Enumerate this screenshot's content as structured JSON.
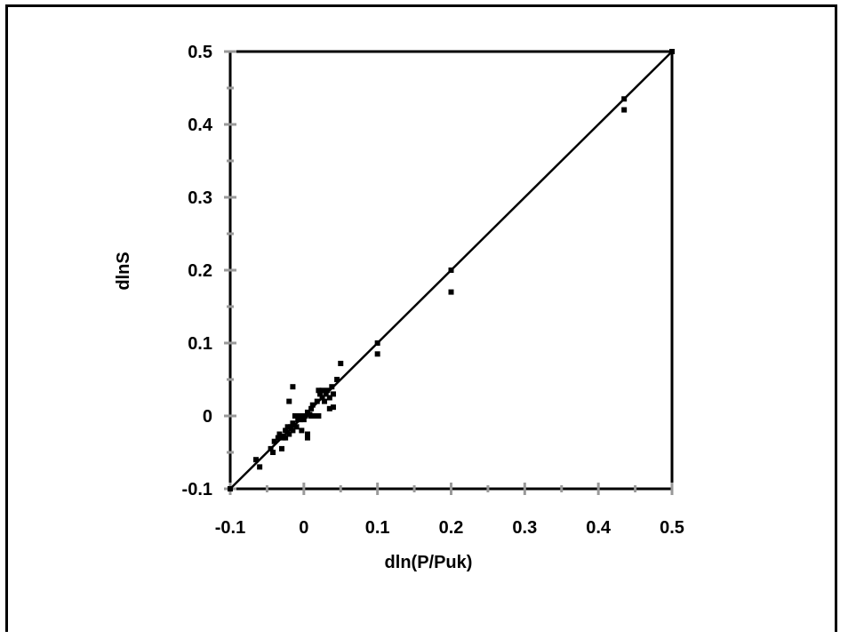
{
  "chart_data": {
    "type": "scatter",
    "title": "",
    "xlabel": "dln(P/Puk)",
    "ylabel": "dlnS",
    "xlim": [
      -0.1,
      0.5
    ],
    "ylim": [
      -0.1,
      0.5
    ],
    "xticks": [
      "-0.1",
      "0",
      "0.1",
      "0.2",
      "0.3",
      "0.4",
      "0.5"
    ],
    "yticks": [
      "-0.1",
      "0",
      "0.1",
      "0.2",
      "0.3",
      "0.4",
      "0.5"
    ],
    "x_tick_values": [
      -0.1,
      0,
      0.1,
      0.2,
      0.3,
      0.4,
      0.5
    ],
    "y_tick_values": [
      -0.1,
      0,
      0.1,
      0.2,
      0.3,
      0.4,
      0.5
    ],
    "grid": false,
    "reference_line": {
      "x": [
        -0.1,
        0.5
      ],
      "y": [
        -0.1,
        0.5
      ]
    },
    "points": [
      [
        -0.1,
        -0.1
      ],
      [
        -0.065,
        -0.06
      ],
      [
        -0.06,
        -0.07
      ],
      [
        -0.045,
        -0.045
      ],
      [
        -0.042,
        -0.05
      ],
      [
        -0.04,
        -0.035
      ],
      [
        -0.035,
        -0.03
      ],
      [
        -0.033,
        -0.025
      ],
      [
        -0.03,
        -0.045
      ],
      [
        -0.03,
        -0.028
      ],
      [
        -0.028,
        -0.03
      ],
      [
        -0.025,
        -0.02
      ],
      [
        -0.025,
        -0.03
      ],
      [
        -0.022,
        -0.015
      ],
      [
        -0.02,
        0.02
      ],
      [
        -0.02,
        -0.025
      ],
      [
        -0.018,
        -0.015
      ],
      [
        -0.015,
        0.04
      ],
      [
        -0.015,
        -0.01
      ],
      [
        -0.015,
        -0.02
      ],
      [
        -0.012,
        0.0
      ],
      [
        -0.01,
        -0.015
      ],
      [
        -0.01,
        0.0
      ],
      [
        -0.008,
        -0.005
      ],
      [
        -0.005,
        -0.005
      ],
      [
        -0.005,
        0.0
      ],
      [
        -0.003,
        -0.02
      ],
      [
        0.0,
        0.0
      ],
      [
        0.0,
        -0.005
      ],
      [
        0.002,
        0.0
      ],
      [
        0.005,
        -0.025
      ],
      [
        0.005,
        -0.03
      ],
      [
        0.005,
        0.005
      ],
      [
        0.008,
        0.002
      ],
      [
        0.01,
        0.01
      ],
      [
        0.01,
        0.0
      ],
      [
        0.012,
        0.015
      ],
      [
        0.015,
        0.0
      ],
      [
        0.018,
        0.02
      ],
      [
        0.02,
        0.035
      ],
      [
        0.02,
        0.0
      ],
      [
        0.022,
        0.03
      ],
      [
        0.025,
        0.025
      ],
      [
        0.025,
        0.035
      ],
      [
        0.028,
        0.02
      ],
      [
        0.03,
        0.03
      ],
      [
        0.032,
        0.035
      ],
      [
        0.035,
        0.025
      ],
      [
        0.035,
        0.01
      ],
      [
        0.038,
        0.04
      ],
      [
        0.04,
        0.03
      ],
      [
        0.04,
        0.012
      ],
      [
        0.045,
        0.05
      ],
      [
        0.05,
        0.072
      ],
      [
        0.1,
        0.1
      ],
      [
        0.1,
        0.085
      ],
      [
        0.2,
        0.2
      ],
      [
        0.2,
        0.17
      ],
      [
        0.435,
        0.435
      ],
      [
        0.435,
        0.42
      ],
      [
        0.5,
        0.5
      ]
    ]
  }
}
